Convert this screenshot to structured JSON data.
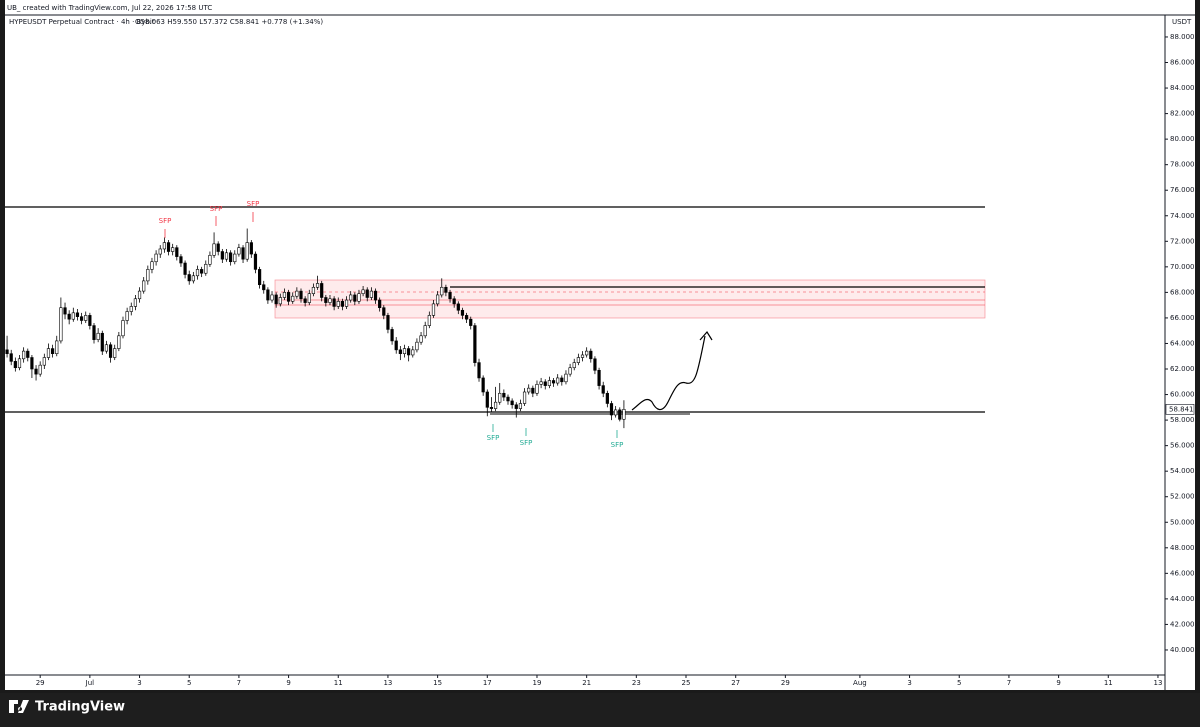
{
  "header": {
    "credit": "UB_ created with TradingView.com, Jul 22, 2026 17:58 UTC",
    "symbol": "HYPEUSDT Perpetual Contract · 4h · Bybit",
    "ohlc": "O58.063 H59.550 L57.372 C58.841 +0.778 (+1.34%)"
  },
  "footer": "TradingView",
  "chart_data": {
    "type": "candlestick",
    "currency": "USDT",
    "up_color": "#ffffff",
    "down_color": "#000000",
    "border_color": "#000000",
    "annotations": [
      "SFP",
      "SFP",
      "SFP",
      "SFP",
      "SFP",
      "SFP"
    ],
    "xlim": [
      -0.5,
      279.7
    ],
    "xticks": [
      {
        "value": 8,
        "label": "29"
      },
      {
        "value": 20,
        "label": "Jul"
      },
      {
        "value": 32,
        "label": "3"
      },
      {
        "value": 44,
        "label": "5"
      },
      {
        "value": 56,
        "label": "7"
      },
      {
        "value": 68,
        "label": "9"
      },
      {
        "value": 80,
        "label": "11"
      },
      {
        "value": 92,
        "label": "13"
      },
      {
        "value": 104,
        "label": "15"
      },
      {
        "value": 116,
        "label": "17"
      },
      {
        "value": 128,
        "label": "19"
      },
      {
        "value": 140,
        "label": "21"
      },
      {
        "value": 152,
        "label": "23"
      },
      {
        "value": 164,
        "label": "25"
      },
      {
        "value": 176,
        "label": "27"
      },
      {
        "value": 188,
        "label": "29"
      },
      {
        "value": 206,
        "label": "Aug"
      },
      {
        "value": 218,
        "label": "3"
      },
      {
        "value": 230,
        "label": "5"
      },
      {
        "value": 242,
        "label": "7"
      },
      {
        "value": 254,
        "label": "9"
      },
      {
        "value": 266,
        "label": "11"
      },
      {
        "value": 278,
        "label": "13"
      }
    ],
    "ylim": [
      38.04,
      89.72
    ],
    "yticks": [
      {
        "value": 40,
        "label": "40.000"
      },
      {
        "value": 42,
        "label": "42.000"
      },
      {
        "value": 44,
        "label": "44.000"
      },
      {
        "value": 46,
        "label": "46.000"
      },
      {
        "value": 48,
        "label": "48.000"
      },
      {
        "value": 50,
        "label": "50.000"
      },
      {
        "value": 52,
        "label": "52.000"
      },
      {
        "value": 54,
        "label": "54.000"
      },
      {
        "value": 56,
        "label": "56.000"
      },
      {
        "value": 58,
        "label": "58.000"
      },
      {
        "value": 60,
        "label": "60.000"
      },
      {
        "value": 62,
        "label": "62.000"
      },
      {
        "value": 64,
        "label": "64.000"
      },
      {
        "value": 66,
        "label": "66.000"
      },
      {
        "value": 68,
        "label": "68.000"
      },
      {
        "value": 70,
        "label": "70.000"
      },
      {
        "value": 72,
        "label": "72.000"
      },
      {
        "value": 74,
        "label": "74.000"
      },
      {
        "value": 76,
        "label": "76.000"
      },
      {
        "value": 78,
        "label": "78.000"
      },
      {
        "value": 80,
        "label": "80.000"
      },
      {
        "value": 82,
        "label": "82.000"
      },
      {
        "value": 84,
        "label": "84.000"
      },
      {
        "value": 86,
        "label": "86.000"
      },
      {
        "value": 88,
        "label": "88.000"
      }
    ],
    "candles": [
      [
        63.5,
        64.6,
        62.9,
        63.2
      ],
      [
        63.2,
        63.5,
        62.3,
        62.6
      ],
      [
        62.6,
        62.9,
        61.8,
        62.1
      ],
      [
        62.1,
        63.1,
        61.9,
        62.8
      ],
      [
        62.8,
        63.7,
        62.5,
        63.4
      ],
      [
        63.4,
        63.6,
        62.6,
        62.9
      ],
      [
        62.9,
        63.1,
        61.3,
        62.0
      ],
      [
        62.0,
        62.3,
        61.1,
        61.6
      ],
      [
        61.6,
        62.6,
        61.4,
        62.3
      ],
      [
        62.3,
        63.2,
        62.0,
        62.9
      ],
      [
        62.9,
        64.0,
        62.7,
        63.6
      ],
      [
        63.6,
        63.9,
        62.9,
        63.2
      ],
      [
        63.2,
        64.6,
        63.0,
        64.2
      ],
      [
        64.2,
        67.6,
        64.0,
        66.8
      ],
      [
        66.8,
        67.2,
        65.9,
        66.3
      ],
      [
        66.3,
        66.6,
        65.5,
        65.9
      ],
      [
        65.9,
        66.8,
        65.7,
        66.4
      ],
      [
        66.4,
        66.7,
        65.8,
        66.1
      ],
      [
        66.1,
        66.4,
        65.5,
        65.8
      ],
      [
        65.8,
        66.5,
        65.6,
        66.2
      ],
      [
        66.2,
        66.4,
        65.1,
        65.4
      ],
      [
        65.4,
        65.6,
        64.0,
        64.3
      ],
      [
        64.3,
        65.2,
        64.1,
        64.8
      ],
      [
        64.8,
        65.0,
        63.1,
        63.4
      ],
      [
        63.4,
        64.2,
        63.2,
        63.9
      ],
      [
        63.9,
        64.1,
        62.5,
        62.9
      ],
      [
        62.9,
        63.9,
        62.7,
        63.6
      ],
      [
        63.6,
        64.9,
        63.4,
        64.6
      ],
      [
        64.6,
        66.1,
        64.4,
        65.8
      ],
      [
        65.8,
        66.8,
        65.5,
        66.5
      ],
      [
        66.5,
        67.2,
        66.2,
        66.9
      ],
      [
        66.9,
        67.8,
        66.6,
        67.5
      ],
      [
        67.5,
        68.4,
        67.2,
        68.1
      ],
      [
        68.1,
        69.2,
        67.9,
        68.9
      ],
      [
        68.9,
        70.1,
        68.6,
        69.8
      ],
      [
        69.8,
        70.7,
        69.5,
        70.4
      ],
      [
        70.4,
        71.3,
        70.1,
        71.0
      ],
      [
        71.0,
        71.7,
        70.7,
        71.4
      ],
      [
        71.4,
        72.3,
        71.1,
        71.9
      ],
      [
        71.9,
        72.1,
        70.9,
        71.2
      ],
      [
        71.2,
        71.8,
        70.9,
        71.5
      ],
      [
        71.5,
        71.7,
        70.5,
        70.8
      ],
      [
        70.8,
        71.0,
        70.0,
        70.3
      ],
      [
        70.3,
        70.5,
        69.1,
        69.4
      ],
      [
        69.4,
        69.7,
        68.6,
        68.9
      ],
      [
        68.9,
        69.6,
        68.7,
        69.3
      ],
      [
        69.3,
        70.1,
        69.0,
        69.8
      ],
      [
        69.8,
        70.0,
        69.2,
        69.5
      ],
      [
        69.5,
        70.5,
        69.3,
        70.2
      ],
      [
        70.2,
        71.2,
        70.0,
        70.9
      ],
      [
        70.9,
        72.7,
        70.7,
        71.8
      ],
      [
        71.8,
        72.0,
        70.9,
        71.2
      ],
      [
        71.2,
        71.4,
        70.3,
        70.6
      ],
      [
        70.6,
        71.4,
        70.4,
        71.1
      ],
      [
        71.1,
        71.3,
        70.1,
        70.4
      ],
      [
        70.4,
        71.3,
        70.2,
        71.0
      ],
      [
        71.0,
        71.8,
        70.8,
        71.5
      ],
      [
        71.5,
        71.7,
        70.3,
        70.6
      ],
      [
        70.6,
        73.0,
        70.4,
        71.9
      ],
      [
        71.9,
        72.1,
        70.7,
        71.0
      ],
      [
        71.0,
        71.2,
        69.5,
        69.8
      ],
      [
        69.8,
        70.0,
        68.3,
        68.6
      ],
      [
        68.6,
        68.9,
        67.9,
        68.2
      ],
      [
        68.2,
        68.4,
        67.1,
        67.4
      ],
      [
        67.4,
        68.1,
        67.2,
        67.8
      ],
      [
        67.8,
        68.0,
        66.8,
        67.1
      ],
      [
        67.1,
        67.9,
        66.9,
        67.6
      ],
      [
        67.6,
        68.3,
        67.4,
        68.0
      ],
      [
        68.0,
        68.2,
        67.0,
        67.3
      ],
      [
        67.3,
        68.0,
        67.1,
        67.7
      ],
      [
        67.7,
        68.4,
        67.5,
        68.1
      ],
      [
        68.1,
        68.3,
        67.2,
        67.5
      ],
      [
        67.5,
        67.7,
        66.9,
        67.2
      ],
      [
        67.2,
        68.2,
        67.0,
        67.9
      ],
      [
        67.9,
        68.7,
        67.7,
        68.4
      ],
      [
        68.4,
        69.3,
        68.2,
        68.7
      ],
      [
        68.7,
        68.9,
        67.3,
        67.6
      ],
      [
        67.6,
        67.8,
        66.9,
        67.2
      ],
      [
        67.2,
        67.8,
        67.0,
        67.5
      ],
      [
        67.5,
        67.7,
        66.6,
        66.9
      ],
      [
        66.9,
        67.6,
        66.7,
        67.3
      ],
      [
        67.3,
        67.5,
        66.6,
        66.9
      ],
      [
        66.9,
        67.7,
        66.7,
        67.4
      ],
      [
        67.4,
        68.1,
        67.2,
        67.8
      ],
      [
        67.8,
        68.0,
        67.0,
        67.3
      ],
      [
        67.3,
        68.2,
        67.1,
        67.9
      ],
      [
        67.9,
        68.5,
        67.7,
        68.2
      ],
      [
        68.2,
        68.4,
        67.3,
        67.6
      ],
      [
        67.6,
        68.4,
        67.4,
        68.1
      ],
      [
        68.1,
        68.3,
        67.1,
        67.4
      ],
      [
        67.4,
        67.6,
        66.5,
        66.8
      ],
      [
        66.8,
        67.0,
        65.9,
        66.2
      ],
      [
        66.2,
        66.4,
        64.8,
        65.1
      ],
      [
        65.1,
        65.3,
        63.9,
        64.2
      ],
      [
        64.2,
        64.5,
        63.2,
        63.5
      ],
      [
        63.5,
        63.8,
        62.7,
        63.2
      ],
      [
        63.2,
        63.9,
        62.9,
        63.6
      ],
      [
        63.6,
        63.8,
        62.6,
        63.1
      ],
      [
        63.1,
        63.8,
        62.9,
        63.5
      ],
      [
        63.5,
        64.4,
        63.3,
        64.1
      ],
      [
        64.1,
        64.9,
        63.9,
        64.6
      ],
      [
        64.6,
        65.7,
        64.4,
        65.4
      ],
      [
        65.4,
        66.5,
        65.2,
        66.2
      ],
      [
        66.2,
        67.4,
        66.0,
        67.1
      ],
      [
        67.1,
        68.1,
        66.9,
        67.8
      ],
      [
        67.8,
        69.1,
        67.6,
        68.4
      ],
      [
        68.4,
        68.6,
        67.7,
        68.0
      ],
      [
        68.0,
        68.2,
        67.2,
        67.5
      ],
      [
        67.5,
        67.7,
        66.8,
        67.1
      ],
      [
        67.1,
        67.3,
        66.3,
        66.6
      ],
      [
        66.6,
        66.8,
        65.9,
        66.2
      ],
      [
        66.2,
        66.4,
        65.6,
        65.9
      ],
      [
        65.9,
        66.1,
        65.1,
        65.4
      ],
      [
        65.4,
        65.6,
        62.2,
        62.5
      ],
      [
        62.5,
        62.8,
        61.0,
        61.3
      ],
      [
        61.3,
        61.5,
        59.9,
        60.2
      ],
      [
        60.2,
        60.4,
        58.3,
        59.0
      ],
      [
        59.0,
        59.8,
        58.6,
        58.9
      ],
      [
        58.9,
        60.6,
        58.7,
        59.4
      ],
      [
        59.4,
        60.9,
        59.2,
        60.1
      ],
      [
        60.1,
        60.4,
        59.5,
        59.8
      ],
      [
        59.8,
        60.0,
        59.2,
        59.5
      ],
      [
        59.5,
        59.7,
        58.9,
        59.2
      ],
      [
        59.2,
        59.4,
        58.2,
        58.9
      ],
      [
        58.9,
        59.6,
        58.7,
        59.3
      ],
      [
        59.3,
        60.5,
        59.1,
        60.2
      ],
      [
        60.2,
        60.8,
        60.0,
        60.5
      ],
      [
        60.5,
        60.7,
        59.8,
        60.1
      ],
      [
        60.1,
        61.1,
        59.9,
        60.8
      ],
      [
        60.8,
        61.3,
        60.5,
        61.0
      ],
      [
        61.0,
        61.2,
        60.4,
        60.7
      ],
      [
        60.7,
        61.4,
        60.5,
        61.1
      ],
      [
        61.1,
        61.3,
        60.6,
        60.9
      ],
      [
        60.9,
        61.6,
        60.7,
        61.3
      ],
      [
        61.3,
        61.5,
        60.7,
        61.0
      ],
      [
        61.0,
        61.9,
        60.8,
        61.6
      ],
      [
        61.6,
        62.4,
        61.4,
        62.1
      ],
      [
        62.1,
        62.8,
        61.9,
        62.5
      ],
      [
        62.5,
        63.2,
        62.3,
        62.9
      ],
      [
        62.9,
        63.4,
        62.6,
        63.1
      ],
      [
        63.1,
        63.7,
        62.9,
        63.4
      ],
      [
        63.4,
        63.6,
        62.5,
        62.8
      ],
      [
        62.8,
        63.0,
        61.6,
        61.9
      ],
      [
        61.9,
        62.1,
        60.4,
        60.7
      ],
      [
        60.7,
        61.0,
        59.8,
        60.1
      ],
      [
        60.1,
        60.3,
        59.0,
        59.3
      ],
      [
        59.3,
        59.5,
        58.0,
        58.4
      ],
      [
        58.4,
        59.1,
        58.2,
        58.8
      ],
      [
        58.8,
        59.0,
        57.9,
        58.063
      ],
      [
        58.063,
        59.55,
        57.372,
        58.841
      ]
    ]
  }
}
